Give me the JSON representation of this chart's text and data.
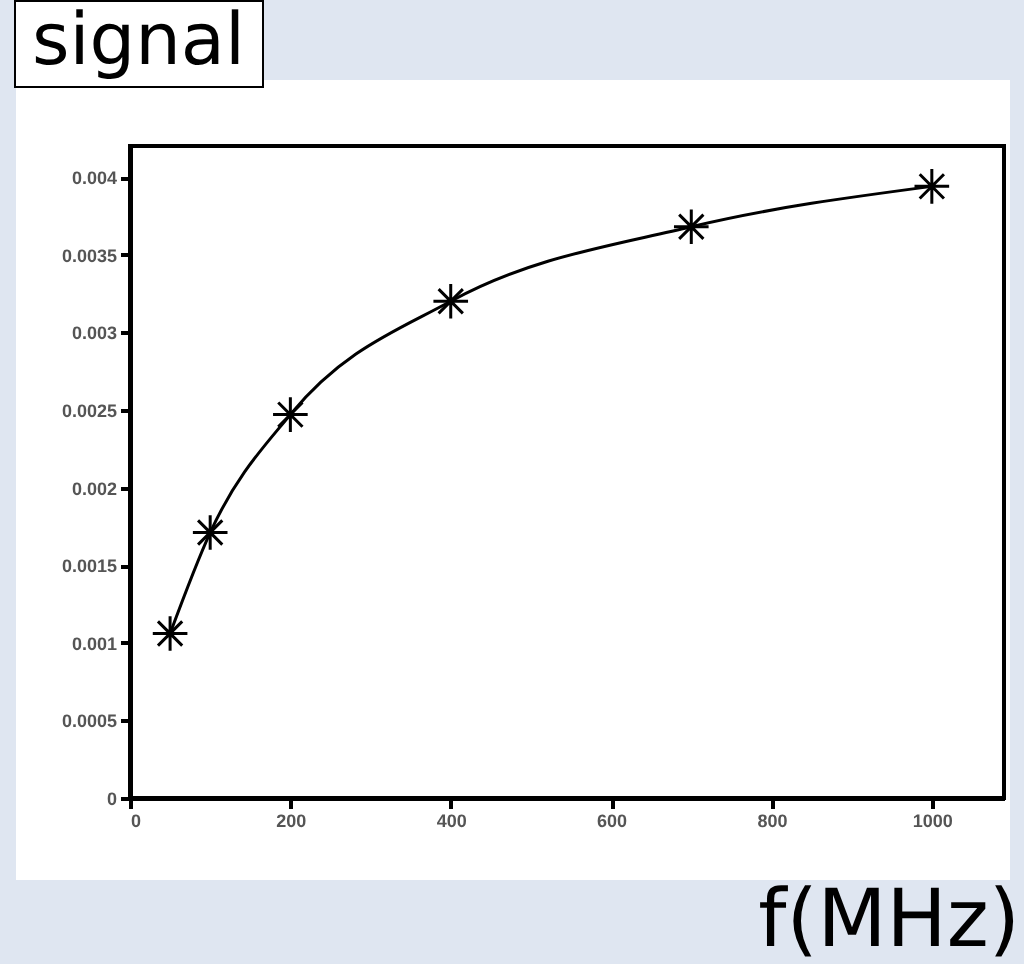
{
  "chart_data": {
    "type": "line",
    "xlabel": "f(MHz)",
    "ylabel": "signal",
    "x": [
      50,
      100,
      200,
      400,
      700,
      1000
    ],
    "series": [
      {
        "color": "#000000",
        "values": [
          0.00106,
          0.00171,
          0.00247,
          0.0032,
          0.00368,
          0.00394
        ]
      }
    ],
    "xlim": [
      0,
      1090
    ],
    "xticks": [
      0,
      200,
      400,
      600,
      800,
      1000
    ],
    "ylim": [
      0,
      0.0042
    ],
    "yticks": [
      0,
      0.0005,
      0.001,
      0.0015,
      0.002,
      0.0025,
      0.003,
      0.0035,
      0.004
    ],
    "marker": "cross",
    "line_style": "solid",
    "grid": false,
    "legend": false
  }
}
